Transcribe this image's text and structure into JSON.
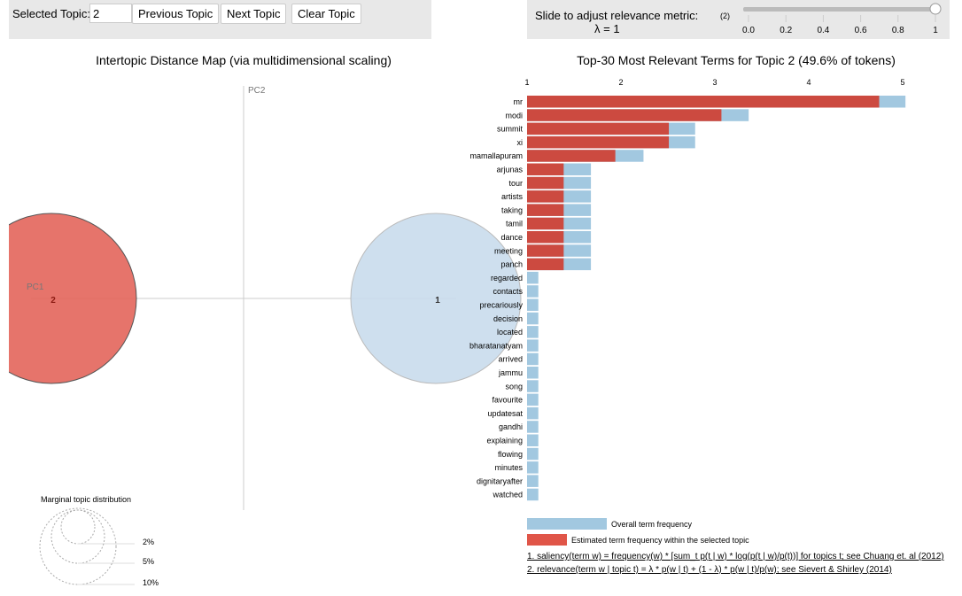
{
  "controls": {
    "selected_topic_label": "Selected Topic:",
    "selected_topic_value": "2",
    "previous_label": "Previous Topic",
    "next_label": "Next Topic",
    "clear_label": "Clear Topic",
    "slider_label": "Slide to adjust relevance metric:",
    "slider_footnote": "(2)",
    "lambda_text": "λ = 1",
    "lambda": 1,
    "slider_ticks": [
      "0.0",
      "0.2",
      "0.4",
      "0.6",
      "0.8",
      "1"
    ]
  },
  "map": {
    "title": "Intertopic Distance Map (via multidimensional scaling)",
    "pc1": "PC1",
    "pc2": "PC2",
    "topics": [
      {
        "id": "2",
        "selected": true,
        "color": "#e3655b"
      },
      {
        "id": "1",
        "selected": false,
        "color": "#c9dcec"
      }
    ],
    "marginal_title": "Marginal topic distribution",
    "marginal_labels": [
      "2%",
      "5%",
      "10%"
    ]
  },
  "bars": {
    "title": "Top-30 Most Relevant Terms for Topic 2 (49.6% of tokens)",
    "ticks": [
      "1",
      "2",
      "3",
      "4",
      "5"
    ],
    "colors": {
      "overall": "#a2c8e0",
      "topic": "#cc4a40"
    },
    "terms": [
      {
        "term": "mr",
        "overall": 5.03,
        "topic": 4.75
      },
      {
        "term": "modi",
        "overall": 3.36,
        "topic": 3.07
      },
      {
        "term": "summit",
        "overall": 2.79,
        "topic": 2.51
      },
      {
        "term": "xi",
        "overall": 2.79,
        "topic": 2.51
      },
      {
        "term": "mamallapuram",
        "overall": 2.24,
        "topic": 1.94
      },
      {
        "term": "arjunas",
        "overall": 1.68,
        "topic": 1.39
      },
      {
        "term": "tour",
        "overall": 1.68,
        "topic": 1.39
      },
      {
        "term": "artists",
        "overall": 1.68,
        "topic": 1.39
      },
      {
        "term": "taking",
        "overall": 1.68,
        "topic": 1.39
      },
      {
        "term": "tamil",
        "overall": 1.68,
        "topic": 1.39
      },
      {
        "term": "dance",
        "overall": 1.68,
        "topic": 1.39
      },
      {
        "term": "meeting",
        "overall": 1.68,
        "topic": 1.39
      },
      {
        "term": "panch",
        "overall": 1.68,
        "topic": 1.39
      },
      {
        "term": "regarded",
        "overall": 1.12,
        "topic": 1.0
      },
      {
        "term": "contacts",
        "overall": 1.12,
        "topic": 1.0
      },
      {
        "term": "precariously",
        "overall": 1.12,
        "topic": 1.0
      },
      {
        "term": "decision",
        "overall": 1.12,
        "topic": 1.0
      },
      {
        "term": "located",
        "overall": 1.12,
        "topic": 1.0
      },
      {
        "term": "bharatanatyam",
        "overall": 1.12,
        "topic": 1.0
      },
      {
        "term": "arrived",
        "overall": 1.12,
        "topic": 1.0
      },
      {
        "term": "jammu",
        "overall": 1.12,
        "topic": 1.0
      },
      {
        "term": "song",
        "overall": 1.12,
        "topic": 1.0
      },
      {
        "term": "favourite",
        "overall": 1.12,
        "topic": 1.0
      },
      {
        "term": "updatesat",
        "overall": 1.12,
        "topic": 1.0
      },
      {
        "term": "gandhi",
        "overall": 1.12,
        "topic": 1.0
      },
      {
        "term": "explaining",
        "overall": 1.12,
        "topic": 1.0
      },
      {
        "term": "flowing",
        "overall": 1.12,
        "topic": 1.0
      },
      {
        "term": "minutes",
        "overall": 1.12,
        "topic": 1.0
      },
      {
        "term": "dignitaryafter",
        "overall": 1.12,
        "topic": 1.0
      },
      {
        "term": "watched",
        "overall": 1.12,
        "topic": 1.0
      }
    ],
    "legend_overall": "Overall term frequency",
    "legend_topic": "Estimated term frequency within the selected topic",
    "footnote1": "1. saliency(term w) = frequency(w) * [sum_t p(t | w) * log(p(t | w)/p(t))] for topics t; see Chuang et. al (2012)",
    "footnote2": "2. relevance(term w | topic t) = λ * p(w | t) + (1 - λ) * p(w | t)/p(w); see Sievert & Shirley (2014)"
  }
}
